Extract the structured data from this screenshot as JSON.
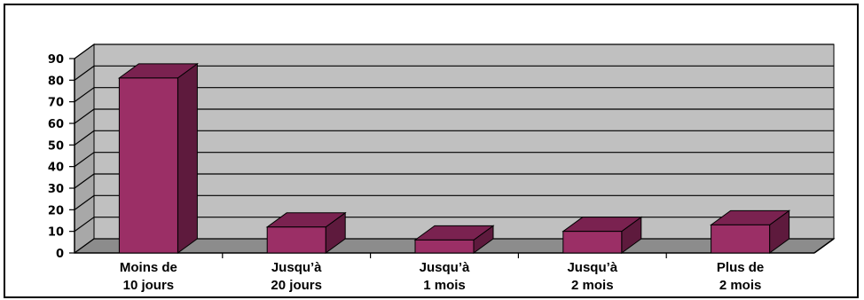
{
  "chart_data": {
    "type": "bar",
    "style": "3d",
    "categories": [
      [
        "Moins de",
        "10 jours"
      ],
      [
        "Jusqu’à",
        "20 jours"
      ],
      [
        "Jusqu’à",
        "1 mois"
      ],
      [
        "Jusqu’à",
        "2 mois"
      ],
      [
        "Plus de",
        "2 mois"
      ]
    ],
    "values": [
      81,
      12,
      6,
      10,
      13
    ],
    "ylim": [
      0,
      90
    ],
    "yticks": [
      0,
      10,
      20,
      30,
      40,
      50,
      60,
      70,
      80,
      90
    ],
    "grid": true,
    "colors": {
      "bar_front": "#9b2f66",
      "bar_top": "#7a2250",
      "bar_side": "#5e1a3d",
      "wall": "#c0c0c0",
      "side_wall": "#a8a8a8",
      "floor": "#8c8c8c"
    }
  }
}
